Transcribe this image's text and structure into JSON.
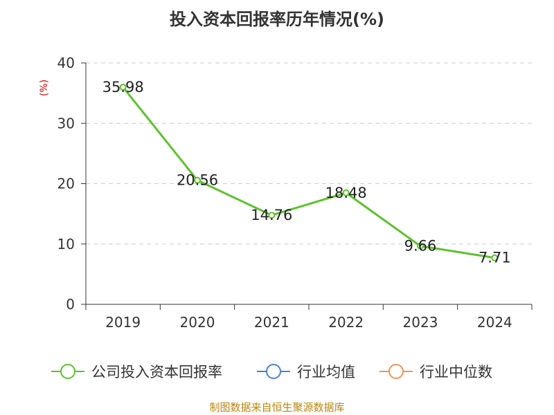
{
  "chart_data": {
    "type": "line",
    "title": "投入资本回报率历年情况(%)",
    "ylabel": "(%)",
    "xlabel": "",
    "categories": [
      "2019",
      "2020",
      "2021",
      "2022",
      "2023",
      "2024"
    ],
    "series": [
      {
        "name": "公司投入资本回报率",
        "values": [
          35.98,
          20.56,
          14.76,
          18.48,
          9.66,
          7.71
        ],
        "labels": [
          "35.98",
          "20.56",
          "14.76",
          "18.48",
          "9.66",
          "7.71"
        ],
        "color": "#5cc12c"
      }
    ],
    "ylim": [
      0,
      40
    ],
    "yticks": [
      0,
      10,
      20,
      30,
      40
    ],
    "grid": true,
    "legend_position": "bottom",
    "legend": [
      {
        "name": "公司投入资本回报率",
        "color": "#5cc12c"
      },
      {
        "name": "行业均值",
        "color": "#4a7fd8"
      },
      {
        "name": "行业中位数",
        "color": "#f0935a"
      }
    ]
  },
  "colors": {
    "ylabel": "#cc0000",
    "axis": "#333333",
    "grid": "#cccccc"
  },
  "footer": "制图数据来自恒生聚源数据库"
}
